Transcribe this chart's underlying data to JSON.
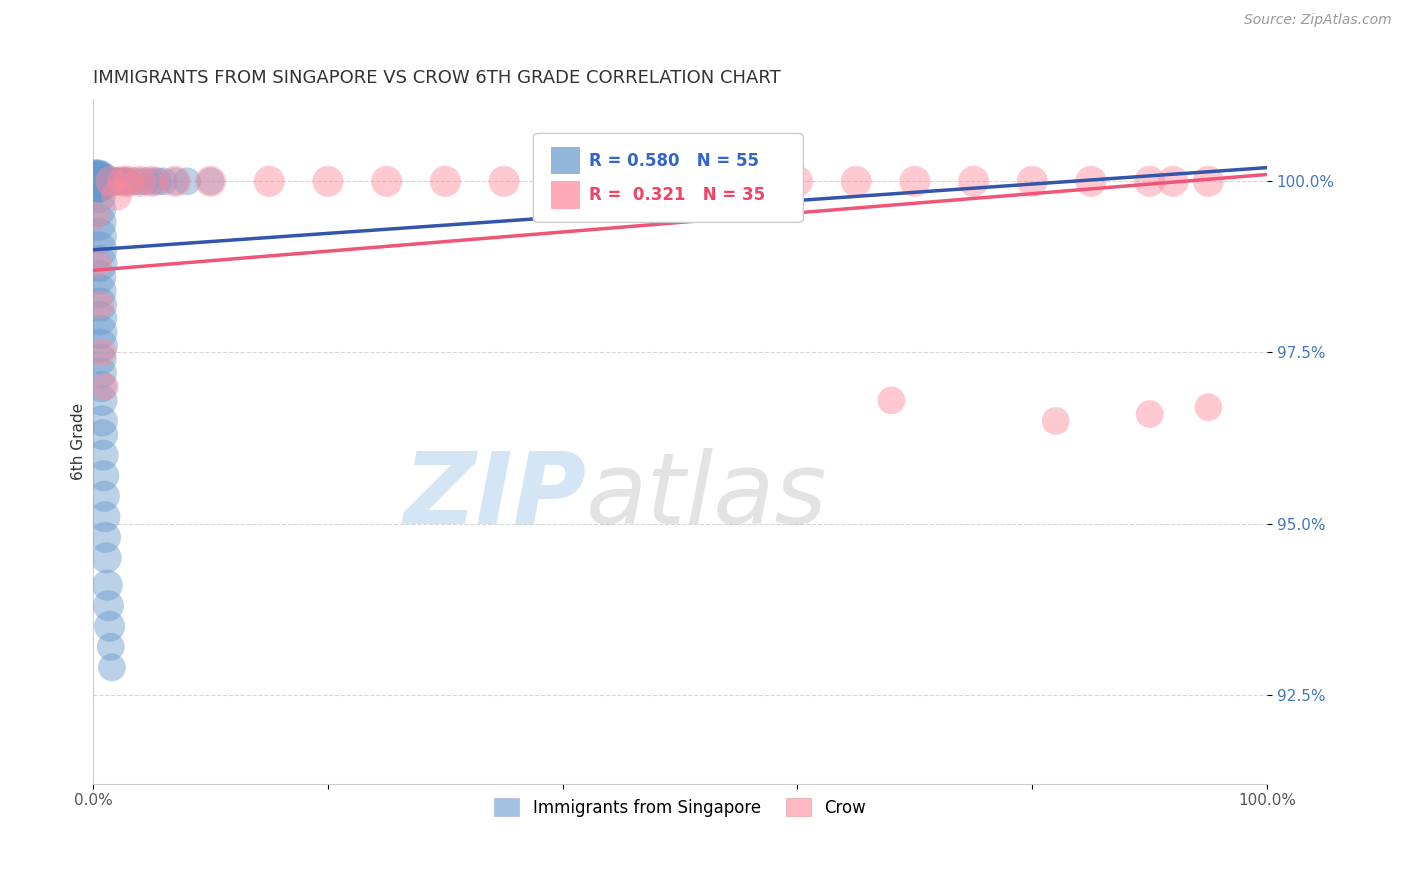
{
  "title": "IMMIGRANTS FROM SINGAPORE VS CROW 6TH GRADE CORRELATION CHART",
  "source": "Source: ZipAtlas.com",
  "ylabel": "6th Grade",
  "xlim": [
    0.0,
    100.0
  ],
  "ylim": [
    91.2,
    101.2
  ],
  "yticks": [
    92.5,
    95.0,
    97.5,
    100.0
  ],
  "ytick_labels": [
    "92.5%",
    "95.0%",
    "97.5%",
    "100.0%"
  ],
  "xtick_labels": [
    "0.0%",
    "",
    "",
    "",
    "",
    "100.0%"
  ],
  "legend_blue_label": "Immigrants from Singapore",
  "legend_pink_label": "Crow",
  "R_blue": 0.58,
  "N_blue": 55,
  "R_pink": 0.321,
  "N_pink": 35,
  "blue_color": "#6699CC",
  "pink_color": "#FF8899",
  "blue_line_color": "#3355AA",
  "pink_line_color": "#EE5577",
  "watermark_zip": "ZIP",
  "watermark_atlas": "atlas",
  "background_color": "#FFFFFF",
  "grid_color": "#CCCCCC",
  "blue_scatter_x": [
    0.15,
    0.18,
    0.2,
    0.22,
    0.25,
    0.28,
    0.3,
    0.35,
    0.38,
    0.4,
    0.42,
    0.45,
    0.48,
    0.5,
    0.52,
    0.55,
    0.58,
    0.6,
    0.62,
    0.65,
    0.68,
    0.7,
    0.72,
    0.75,
    0.78,
    0.8,
    0.85,
    0.9,
    0.95,
    1.0,
    1.05,
    1.1,
    1.2,
    1.3,
    1.4,
    1.5,
    1.6,
    1.7,
    1.8,
    1.9,
    2.0,
    2.2,
    2.4,
    2.6,
    2.8,
    3.0,
    3.5,
    4.0,
    4.5,
    5.0,
    5.5,
    6.0,
    7.0,
    8.0,
    10.0
  ],
  "blue_scatter_y": [
    100.0,
    100.0,
    100.0,
    100.0,
    100.0,
    100.0,
    100.0,
    100.0,
    99.8,
    99.6,
    99.4,
    99.2,
    99.0,
    98.8,
    98.6,
    98.4,
    98.2,
    98.0,
    97.8,
    97.6,
    97.4,
    97.2,
    97.0,
    96.8,
    96.5,
    96.3,
    96.0,
    95.7,
    95.4,
    95.1,
    94.8,
    94.5,
    94.1,
    93.8,
    93.5,
    93.2,
    92.9,
    100.0,
    100.0,
    100.0,
    100.0,
    100.0,
    100.0,
    100.0,
    100.0,
    100.0,
    100.0,
    100.0,
    100.0,
    100.0,
    100.0,
    100.0,
    100.0,
    100.0,
    100.0
  ],
  "blue_scatter_sizes": [
    800,
    800,
    900,
    900,
    900,
    900,
    1000,
    1000,
    700,
    700,
    700,
    700,
    700,
    700,
    600,
    600,
    600,
    600,
    600,
    600,
    500,
    500,
    500,
    500,
    500,
    500,
    500,
    500,
    500,
    500,
    500,
    500,
    500,
    500,
    500,
    400,
    400,
    400,
    400,
    400,
    400,
    400,
    400,
    400,
    400,
    400,
    400,
    400,
    400,
    400,
    400,
    400,
    400,
    400,
    400
  ],
  "pink_scatter_x": [
    0.2,
    0.4,
    0.6,
    0.8,
    1.0,
    1.5,
    2.0,
    2.5,
    3.0,
    4.0,
    5.0,
    7.0,
    10.0,
    15.0,
    20.0,
    25.0,
    30.0,
    35.0,
    40.0,
    45.0,
    50.0,
    55.0,
    60.0,
    65.0,
    70.0,
    75.0,
    80.0,
    85.0,
    90.0,
    92.0,
    95.0,
    68.0,
    82.0,
    90.0,
    95.0
  ],
  "pink_scatter_y": [
    99.5,
    98.8,
    98.2,
    97.5,
    97.0,
    100.0,
    99.8,
    100.0,
    100.0,
    100.0,
    100.0,
    100.0,
    100.0,
    100.0,
    100.0,
    100.0,
    100.0,
    100.0,
    100.0,
    100.0,
    100.0,
    100.0,
    100.0,
    100.0,
    100.0,
    100.0,
    100.0,
    100.0,
    100.0,
    100.0,
    100.0,
    96.8,
    96.5,
    96.6,
    96.7
  ],
  "pink_scatter_sizes": [
    400,
    400,
    400,
    400,
    400,
    500,
    500,
    500,
    500,
    500,
    500,
    500,
    500,
    500,
    500,
    500,
    500,
    500,
    500,
    500,
    500,
    500,
    500,
    500,
    500,
    500,
    500,
    500,
    500,
    500,
    500,
    400,
    400,
    400,
    400
  ],
  "blue_line_x": [
    0,
    100
  ],
  "blue_line_y": [
    99.0,
    100.2
  ],
  "pink_line_x": [
    0,
    100
  ],
  "pink_line_y": [
    98.7,
    100.1
  ]
}
